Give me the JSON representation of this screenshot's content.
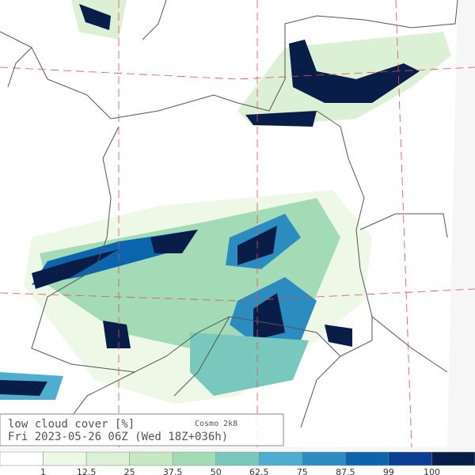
{
  "header": {
    "title": "low cloud cover  [%]",
    "model": "Cosmo 2k8",
    "valid_time": "Fri 2023-05-26 06Z (Wed 18Z+036h)"
  },
  "legend": {
    "colors": [
      "#ffffff",
      "#eef8e6",
      "#dcf0d6",
      "#c6e8c4",
      "#a2dbb6",
      "#78c8be",
      "#4eaed2",
      "#2b8cc0",
      "#0b65ad",
      "#083f94",
      "#081d48"
    ],
    "labels": [
      "1",
      "12.5",
      "25",
      "37.5",
      "50",
      "62.5",
      "75",
      "87.5",
      "99",
      "100"
    ]
  }
}
